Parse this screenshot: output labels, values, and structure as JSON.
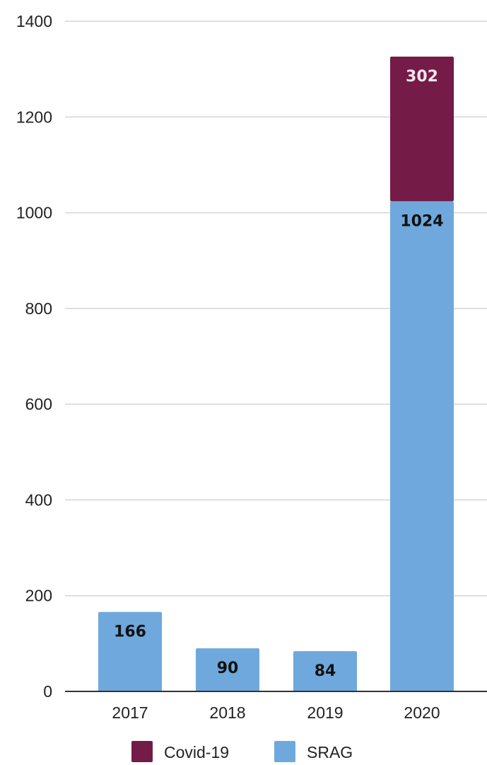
{
  "chart_data": {
    "type": "bar",
    "stacked": true,
    "categories": [
      "2017",
      "2018",
      "2019",
      "2020"
    ],
    "series": [
      {
        "name": "SRAG",
        "color": "#6fa8dc",
        "label_color": "#111111",
        "values": [
          166,
          90,
          84,
          1024
        ]
      },
      {
        "name": "Covid-19",
        "color": "#741b47",
        "label_color": "#f3e6ee",
        "values": [
          0,
          0,
          0,
          302
        ]
      }
    ],
    "legend_order": [
      "Covid-19",
      "SRAG"
    ],
    "title": "",
    "xlabel": "",
    "ylabel": "",
    "ylim": [
      0,
      1400
    ],
    "yticks": [
      0,
      200,
      400,
      600,
      800,
      1000,
      1200,
      1400
    ],
    "grid": true,
    "legend_position": "bottom"
  }
}
